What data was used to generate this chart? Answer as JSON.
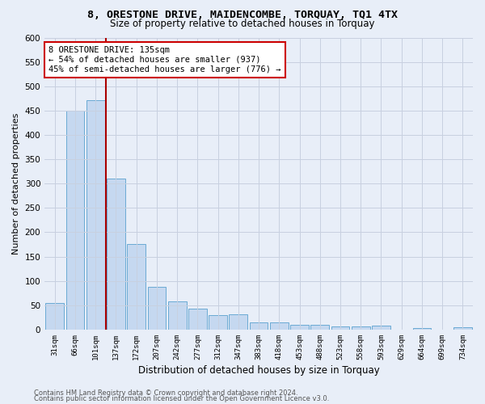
{
  "title": "8, ORESTONE DRIVE, MAIDENCOMBE, TORQUAY, TQ1 4TX",
  "subtitle": "Size of property relative to detached houses in Torquay",
  "xlabel": "Distribution of detached houses by size in Torquay",
  "ylabel": "Number of detached properties",
  "bar_labels": [
    "31sqm",
    "66sqm",
    "101sqm",
    "137sqm",
    "172sqm",
    "207sqm",
    "242sqm",
    "277sqm",
    "312sqm",
    "347sqm",
    "383sqm",
    "418sqm",
    "453sqm",
    "488sqm",
    "523sqm",
    "558sqm",
    "593sqm",
    "629sqm",
    "664sqm",
    "699sqm",
    "734sqm"
  ],
  "bar_values": [
    55,
    450,
    472,
    311,
    176,
    88,
    58,
    43,
    30,
    31,
    15,
    15,
    10,
    10,
    6,
    6,
    9,
    0,
    4,
    0,
    5
  ],
  "bar_color": "#c5d8f0",
  "bar_edgecolor": "#6aaad4",
  "vline_color": "#aa0000",
  "vline_label": "8 ORESTONE DRIVE: 135sqm",
  "annotation_line2": "← 54% of detached houses are smaller (937)",
  "annotation_line3": "45% of semi-detached houses are larger (776) →",
  "annotation_box_edgecolor": "#cc0000",
  "ylim": [
    0,
    600
  ],
  "yticks": [
    0,
    50,
    100,
    150,
    200,
    250,
    300,
    350,
    400,
    450,
    500,
    550,
    600
  ],
  "footer1": "Contains HM Land Registry data © Crown copyright and database right 2024.",
  "footer2": "Contains public sector information licensed under the Open Government Licence v3.0.",
  "background_color": "#e8eef8",
  "grid_color": "#c8d0e0"
}
